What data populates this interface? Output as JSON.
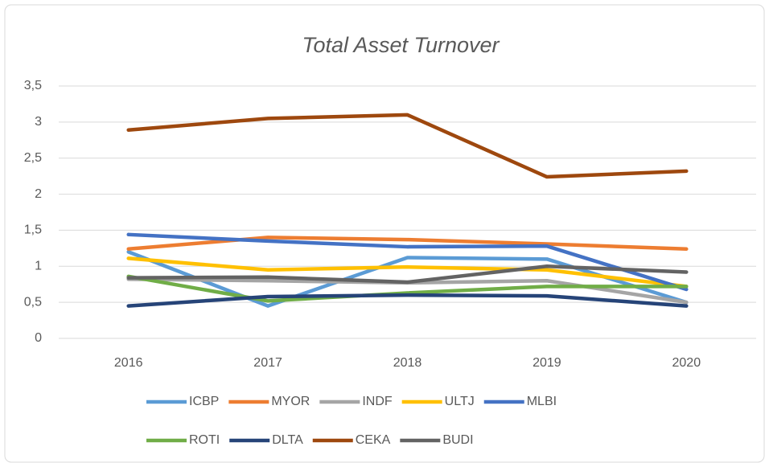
{
  "chart_data": {
    "type": "line",
    "title": "Total Asset Turnover",
    "categories": [
      "2016",
      "2017",
      "2018",
      "2019",
      "2020"
    ],
    "series": [
      {
        "name": "ICBP",
        "color": "#5b9bd5",
        "values": [
          1.2,
          0.45,
          1.12,
          1.1,
          0.5
        ]
      },
      {
        "name": "MYOR",
        "color": "#ed7d31",
        "values": [
          1.24,
          1.4,
          1.37,
          1.31,
          1.24
        ]
      },
      {
        "name": "INDF",
        "color": "#a5a5a5",
        "values": [
          0.82,
          0.8,
          0.77,
          0.8,
          0.5
        ]
      },
      {
        "name": "ULTJ",
        "color": "#ffc000",
        "values": [
          1.11,
          0.95,
          0.99,
          0.95,
          0.72
        ]
      },
      {
        "name": "MLBI",
        "color": "#4472c4",
        "values": [
          1.44,
          1.35,
          1.27,
          1.28,
          0.68
        ]
      },
      {
        "name": "ROTI",
        "color": "#70ad47",
        "values": [
          0.86,
          0.52,
          0.63,
          0.72,
          0.72
        ]
      },
      {
        "name": "DLTA",
        "color": "#264478",
        "values": [
          0.45,
          0.58,
          0.6,
          0.59,
          0.45
        ]
      },
      {
        "name": "CEKA",
        "color": "#9e480e",
        "values": [
          2.89,
          3.05,
          3.1,
          2.24,
          2.32
        ]
      },
      {
        "name": "BUDI",
        "color": "#636363",
        "values": [
          0.84,
          0.85,
          0.78,
          1.0,
          0.92
        ]
      }
    ],
    "ylim": [
      0,
      3.5
    ],
    "yticks": [
      0,
      {
        "value": 0.5,
        "label": "0,5"
      },
      1,
      {
        "value": 1.5,
        "label": "1,5"
      },
      2,
      {
        "value": 2.5,
        "label": "2,5"
      },
      3,
      {
        "value": 3.5,
        "label": "3,5"
      }
    ],
    "grid": true,
    "legend": "bottom"
  }
}
